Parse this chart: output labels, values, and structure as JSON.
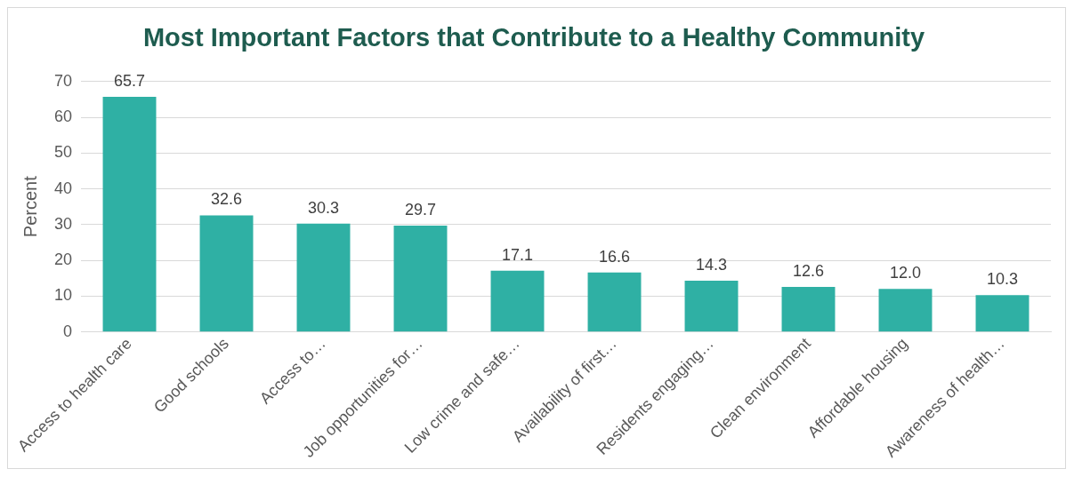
{
  "chart_data": {
    "type": "bar",
    "title": "Most Important Factors that Contribute to a Healthy Community",
    "ylabel": "Percent",
    "categories": [
      "Access to health care",
      "Good schools",
      "Access to…",
      "Job opportunities for…",
      "Low crime and safe…",
      "Availability of first…",
      "Residents engaging…",
      "Clean environment",
      "Affordable housing",
      "Awareness of health…"
    ],
    "values": [
      65.7,
      32.6,
      30.3,
      29.7,
      17.1,
      16.6,
      14.3,
      12.6,
      12.0,
      10.3
    ],
    "value_labels": [
      "65.7",
      "32.6",
      "30.3",
      "29.7",
      "17.1",
      "16.6",
      "14.3",
      "12.6",
      "12.0",
      "10.3"
    ],
    "color": "#2fb0a4",
    "ylim": [
      0,
      70
    ],
    "yticks": [
      0,
      10,
      20,
      30,
      40,
      50,
      60,
      70
    ],
    "grid": "y",
    "legend": false
  }
}
